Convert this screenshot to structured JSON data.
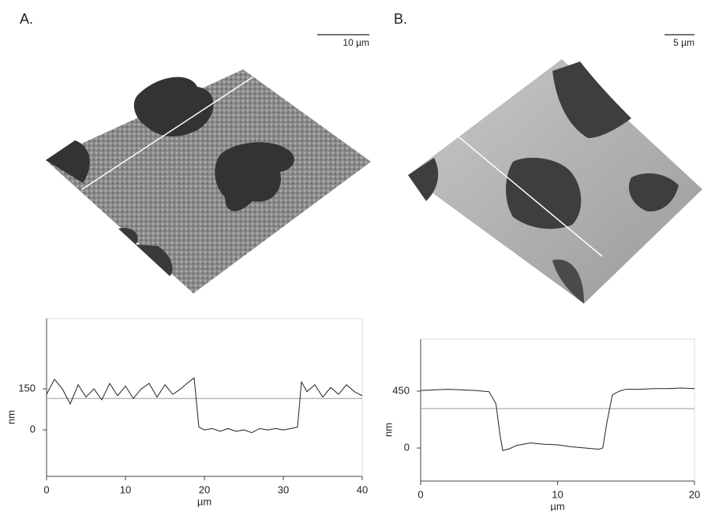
{
  "chart_data": [
    {
      "type": "line",
      "panel_label": "A.",
      "scale_bar": "10 µm",
      "xlabel": "µm",
      "ylabel": "nm",
      "xlim": [
        0,
        40
      ],
      "xticks": [
        0,
        10,
        20,
        30,
        40
      ],
      "ylim": [
        -170,
        407
      ],
      "yticks": [
        0,
        150
      ],
      "reference_line": 115,
      "color": "#222222",
      "x": [
        0,
        1,
        2,
        3,
        4,
        5,
        6,
        7,
        8,
        9,
        10,
        11,
        12,
        13,
        14,
        15,
        16,
        17,
        18,
        18.7,
        19.3,
        20,
        21,
        22,
        23,
        24,
        25,
        26,
        27,
        28,
        29,
        30,
        31,
        31.8,
        32.3,
        33,
        34,
        35,
        36,
        37,
        38,
        39,
        40
      ],
      "values": [
        130,
        185,
        150,
        95,
        165,
        120,
        150,
        110,
        170,
        125,
        160,
        115,
        150,
        170,
        120,
        165,
        130,
        150,
        175,
        190,
        10,
        0,
        5,
        -5,
        5,
        -5,
        0,
        -10,
        5,
        0,
        5,
        0,
        5,
        10,
        175,
        140,
        165,
        120,
        155,
        130,
        165,
        140,
        125
      ]
    },
    {
      "type": "line",
      "panel_label": "B.",
      "scale_bar": "5 µm",
      "xlabel": "µm",
      "ylabel": "nm",
      "xlim": [
        0,
        20
      ],
      "xticks": [
        0,
        10,
        20
      ],
      "ylim": [
        -262,
        862
      ],
      "yticks": [
        0,
        450
      ],
      "reference_line": 312,
      "color": "#222222",
      "x": [
        0,
        1,
        2,
        3,
        4,
        5,
        5.5,
        5.8,
        6,
        6.5,
        7,
        8,
        9,
        10,
        11,
        12,
        13,
        13.3,
        13.6,
        14,
        14.5,
        15,
        16,
        17,
        18,
        19,
        20
      ],
      "values": [
        455,
        460,
        465,
        460,
        455,
        445,
        350,
        100,
        -20,
        -5,
        20,
        40,
        30,
        25,
        10,
        0,
        -10,
        0,
        200,
        420,
        450,
        465,
        465,
        470,
        470,
        475,
        470
      ]
    }
  ]
}
